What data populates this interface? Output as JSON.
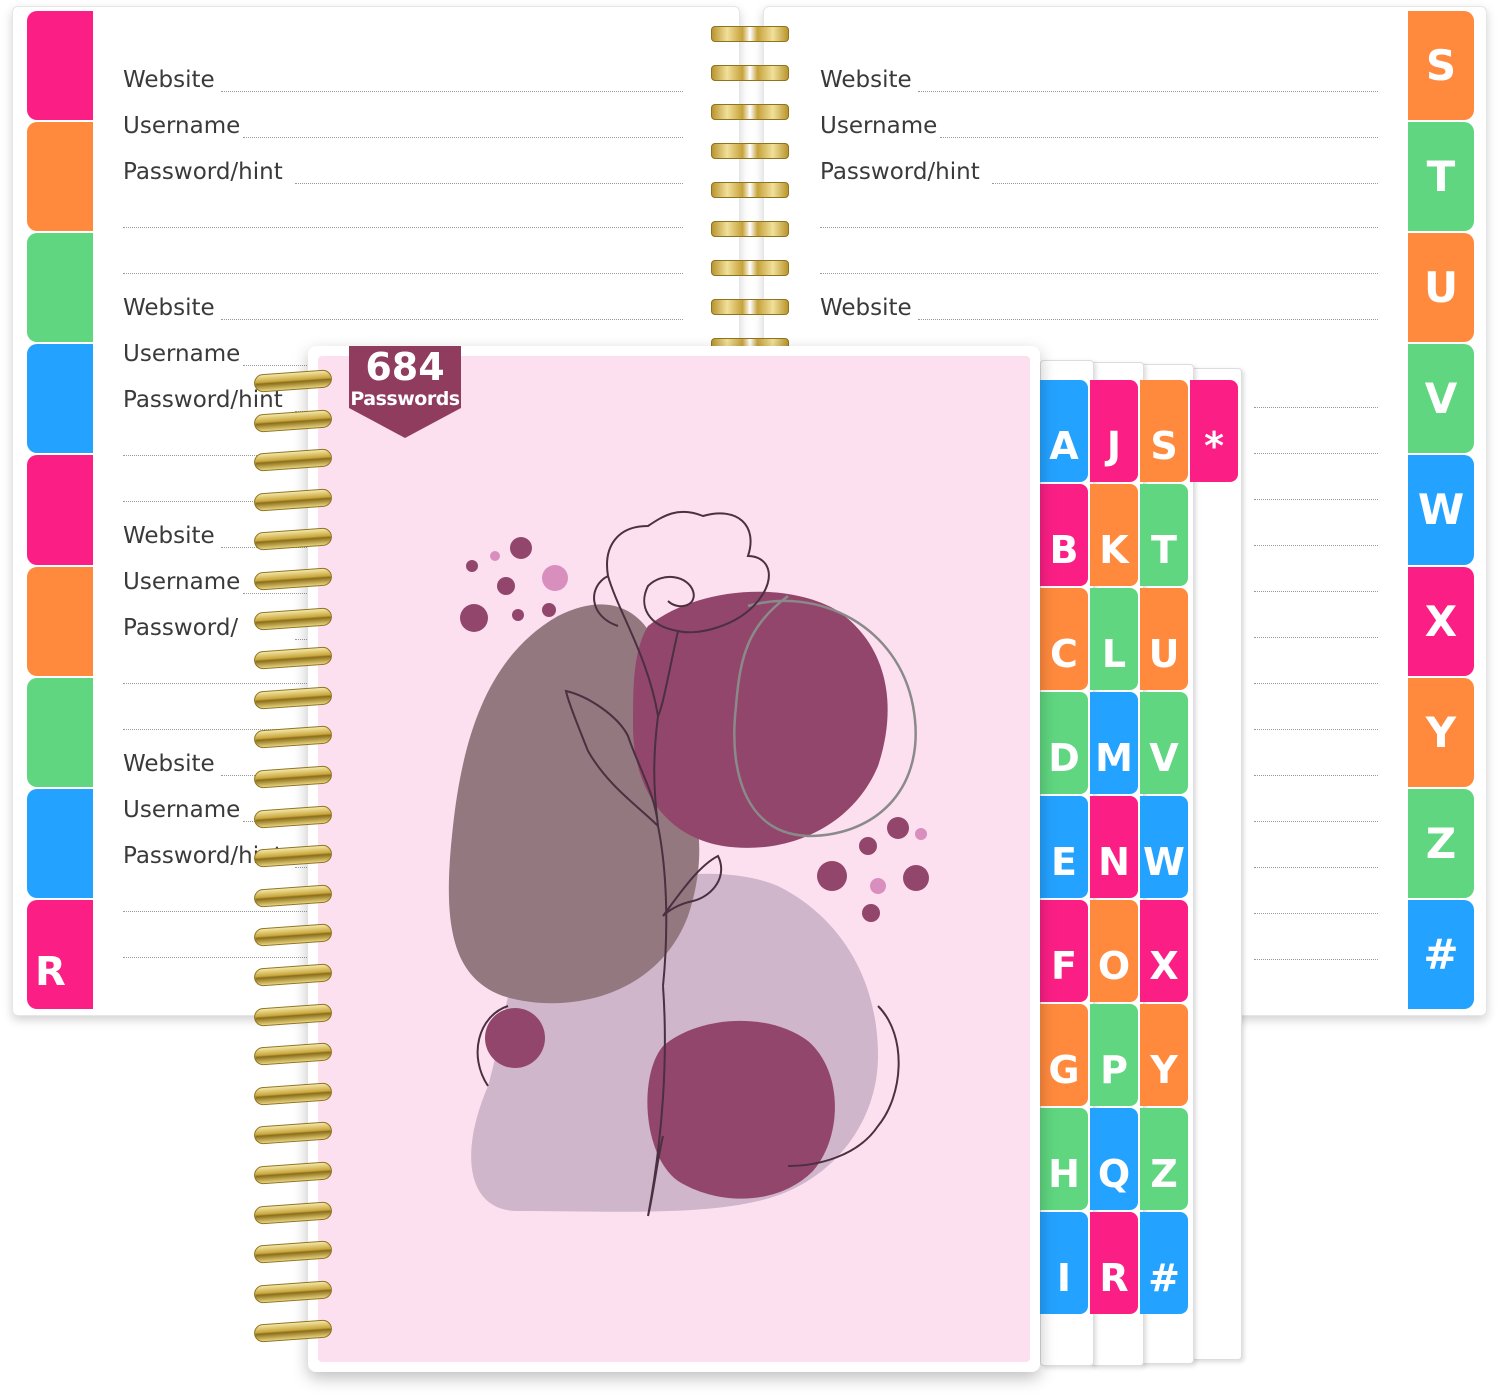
{
  "left_page": {
    "entries": [
      {
        "website": "Website",
        "username": "Username",
        "password": "Password/hint"
      },
      {
        "website": "Website",
        "username": "Username",
        "password": "Password/hint"
      },
      {
        "website": "Website",
        "username": "Username",
        "password": "Password/"
      },
      {
        "website": "Website",
        "username": "Username",
        "password": "Password/hint"
      }
    ],
    "tab_letter": "R",
    "tab_colors": [
      "#fb1f85",
      "#ff8a3d",
      "#5fd67f",
      "#24a2ff",
      "#fb1f85",
      "#ff8a3d",
      "#5fd67f",
      "#24a2ff",
      "#fb1f85"
    ]
  },
  "right_page": {
    "entries": [
      {
        "website": "Website",
        "username": "Username",
        "password": "Password/hint"
      },
      {
        "website": "Website"
      }
    ],
    "tabs": [
      {
        "letter": "S",
        "color": "#ff8a3d"
      },
      {
        "letter": "T",
        "color": "#5fd67f"
      },
      {
        "letter": "U",
        "color": "#ff8a3d"
      },
      {
        "letter": "V",
        "color": "#5fd67f"
      },
      {
        "letter": "W",
        "color": "#24a2ff"
      },
      {
        "letter": "X",
        "color": "#fb1f85"
      },
      {
        "letter": "Y",
        "color": "#ff8a3d"
      },
      {
        "letter": "Z",
        "color": "#5fd67f"
      },
      {
        "letter": "#",
        "color": "#24a2ff"
      }
    ]
  },
  "cover": {
    "badge_number": "684",
    "badge_text": "Passwords",
    "background_color": "#fde0f0",
    "badge_color": "#8f3c5f"
  },
  "cover_tabs": {
    "col1": [
      {
        "letter": "A",
        "color": "#24a2ff"
      },
      {
        "letter": "B",
        "color": "#fb1f85"
      },
      {
        "letter": "C",
        "color": "#ff8a3d"
      },
      {
        "letter": "D",
        "color": "#5fd67f"
      },
      {
        "letter": "E",
        "color": "#24a2ff"
      },
      {
        "letter": "F",
        "color": "#fb1f85"
      },
      {
        "letter": "G",
        "color": "#ff8a3d"
      },
      {
        "letter": "H",
        "color": "#5fd67f"
      },
      {
        "letter": "I",
        "color": "#24a2ff"
      }
    ],
    "col2": [
      {
        "letter": "J",
        "color": "#fb1f85"
      },
      {
        "letter": "K",
        "color": "#ff8a3d"
      },
      {
        "letter": "L",
        "color": "#5fd67f"
      },
      {
        "letter": "M",
        "color": "#24a2ff"
      },
      {
        "letter": "N",
        "color": "#fb1f85"
      },
      {
        "letter": "O",
        "color": "#ff8a3d"
      },
      {
        "letter": "P",
        "color": "#5fd67f"
      },
      {
        "letter": "Q",
        "color": "#24a2ff"
      },
      {
        "letter": "R",
        "color": "#fb1f85"
      }
    ],
    "col3": [
      {
        "letter": "S",
        "color": "#ff8a3d"
      },
      {
        "letter": "T",
        "color": "#5fd67f"
      },
      {
        "letter": "U",
        "color": "#ff8a3d"
      },
      {
        "letter": "V",
        "color": "#5fd67f"
      },
      {
        "letter": "W",
        "color": "#24a2ff"
      },
      {
        "letter": "X",
        "color": "#fb1f85"
      },
      {
        "letter": "Y",
        "color": "#ff8a3d"
      },
      {
        "letter": "Z",
        "color": "#5fd67f"
      },
      {
        "letter": "#",
        "color": "#24a2ff"
      }
    ],
    "col4": [
      {
        "letter": "*",
        "color": "#fb1f85"
      }
    ]
  }
}
